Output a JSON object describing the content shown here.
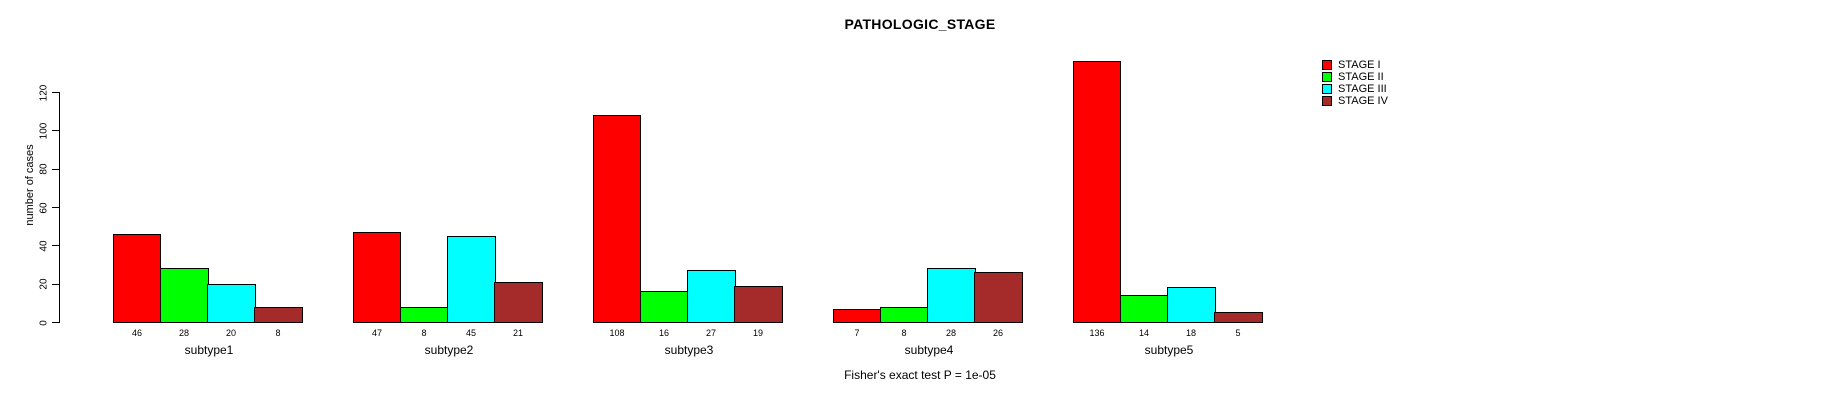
{
  "header": {
    "title": "PATHOLOGIC_STAGE"
  },
  "chart_data": {
    "type": "bar",
    "title": "PATHOLOGIC_STAGE",
    "xlabel": "",
    "ylabel": "number of cases",
    "categories": [
      "subtype1",
      "subtype2",
      "subtype3",
      "subtype4",
      "subtype5"
    ],
    "series": [
      {
        "name": "STAGE I",
        "color": "#FF0000",
        "values": [
          46,
          47,
          108,
          7,
          136
        ]
      },
      {
        "name": "STAGE II",
        "color": "#00FF00",
        "values": [
          28,
          8,
          16,
          8,
          14
        ]
      },
      {
        "name": "STAGE III",
        "color": "#00FFFF",
        "values": [
          20,
          45,
          27,
          28,
          18
        ]
      },
      {
        "name": "STAGE IV",
        "color": "#A52A2A",
        "values": [
          8,
          21,
          19,
          26,
          5
        ]
      }
    ],
    "bar_value_labels": [
      [
        46,
        28,
        20,
        8
      ],
      [
        47,
        8,
        45,
        21
      ],
      [
        108,
        16,
        27,
        19
      ],
      [
        7,
        8,
        28,
        26
      ],
      [
        136,
        14,
        18,
        5
      ]
    ],
    "ylim": [
      0,
      120
    ],
    "yticks": [
      0,
      20,
      40,
      60,
      80,
      100,
      120
    ],
    "grid": false,
    "legend_position": "right",
    "annotation": "Fisher's exact test P = 1e-05"
  }
}
